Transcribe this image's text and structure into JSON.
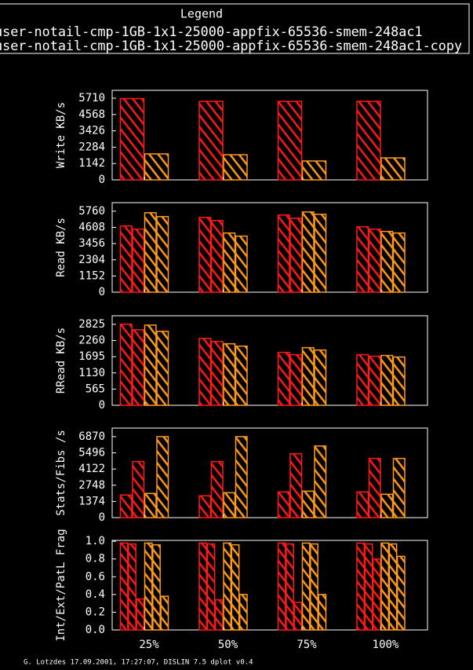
{
  "legend": {
    "title": "Legend",
    "entries": [
      "user-notail-cmp-1GB-1x1-25000-appfix-65536-smem-248ac1",
      "user-notail-cmp-1GB-1x1-25000-appfix-65536-smem-248ac1-copy"
    ]
  },
  "footer": "G. Lotzdes 17.09.2001, 17:27:07, DISLIN 7.5 dplot v0.4",
  "chart_data": [
    {
      "type": "bar",
      "ylabel": "Write KB/s",
      "categories": [
        "25%",
        "50%",
        "75%",
        "100%"
      ],
      "ylim": [
        0,
        6259
      ],
      "yticks": [
        0,
        1142,
        2284,
        3426,
        4568,
        5710
      ],
      "series": [
        {
          "color": "#ff1a1a",
          "values": [
            [
              5680
            ],
            [
              5490
            ],
            [
              5490
            ],
            [
              5490
            ]
          ]
        },
        {
          "color": "#ff9a1a",
          "values": [
            [
              1812
            ],
            [
              1757
            ],
            [
              1318
            ],
            [
              1537
            ]
          ]
        }
      ]
    },
    {
      "type": "bar",
      "ylabel": "Read KB/s",
      "categories": [
        "25%",
        "50%",
        "75%",
        "100%"
      ],
      "ylim": [
        0,
        6369
      ],
      "yticks": [
        0,
        1152,
        2304,
        3456,
        4608,
        5760
      ],
      "series": [
        {
          "color": "#ff1a1a",
          "values": [
            [
              4709,
              4487
            ],
            [
              5318,
              5097
            ],
            [
              5485,
              5263
            ],
            [
              4653,
              4487
            ]
          ]
        },
        {
          "color": "#ff9a1a",
          "values": [
            [
              5650,
              5374
            ],
            [
              4210,
              3989
            ],
            [
              5706,
              5540
            ],
            [
              4321,
              4210
            ]
          ]
        }
      ]
    },
    {
      "type": "bar",
      "ylabel": "RRead KB/s",
      "categories": [
        "25%",
        "50%",
        "75%",
        "100%"
      ],
      "ylim": [
        0,
        3124
      ],
      "yticks": [
        0,
        565,
        1130,
        1695,
        2260,
        2825
      ],
      "series": [
        {
          "color": "#ff1a1a",
          "values": [
            [
              2830,
              2635
            ],
            [
              2336,
              2227
            ],
            [
              1847,
              1765
            ],
            [
              1765,
              1711
            ]
          ]
        },
        {
          "color": "#ff9a1a",
          "values": [
            [
              2797,
              2580
            ],
            [
              2146,
              2064
            ],
            [
              2010,
              1928
            ],
            [
              1738,
              1684
            ]
          ]
        }
      ]
    },
    {
      "type": "bar",
      "ylabel": "Stats/Fibs /s",
      "categories": [
        "25%",
        "50%",
        "75%",
        "100%"
      ],
      "ylim": [
        0,
        7597
      ],
      "yticks": [
        0,
        1374,
        2748,
        4122,
        5496,
        6870
      ],
      "series": [
        {
          "color": "#ff1a1a",
          "values": [
            [
              1916,
              4756
            ],
            [
              1850,
              4756
            ],
            [
              2180,
              5417
            ],
            [
              2180,
              5020
            ]
          ]
        },
        {
          "color": "#ff9a1a",
          "values": [
            [
              2048,
              6870
            ],
            [
              2114,
              6870
            ],
            [
              2246,
              6078
            ],
            [
              1982,
              5020
            ]
          ]
        }
      ]
    },
    {
      "type": "bar",
      "ylabel": "Int/Ext/PatL Frag",
      "categories": [
        "25%",
        "50%",
        "75%",
        "100%"
      ],
      "ylim": [
        0,
        1.01
      ],
      "yticks": [
        {
          "value": 0,
          "label": "0.0"
        },
        0.2,
        0.4,
        0.6,
        0.8,
        {
          "value": 1,
          "label": "1.0"
        }
      ],
      "series": [
        {
          "color": "#ff1a1a",
          "values": [
            [
              0.98,
              0.97,
              0.35
            ],
            [
              0.98,
              0.97,
              0.34
            ],
            [
              0.98,
              0.97,
              0.31
            ],
            [
              0.98,
              0.97,
              0.8
            ]
          ]
        },
        {
          "color": "#ff9a1a",
          "values": [
            [
              0.98,
              0.96,
              0.38
            ],
            [
              0.98,
              0.96,
              0.4
            ],
            [
              0.98,
              0.97,
              0.4
            ],
            [
              0.98,
              0.97,
              0.83
            ]
          ]
        }
      ]
    }
  ]
}
